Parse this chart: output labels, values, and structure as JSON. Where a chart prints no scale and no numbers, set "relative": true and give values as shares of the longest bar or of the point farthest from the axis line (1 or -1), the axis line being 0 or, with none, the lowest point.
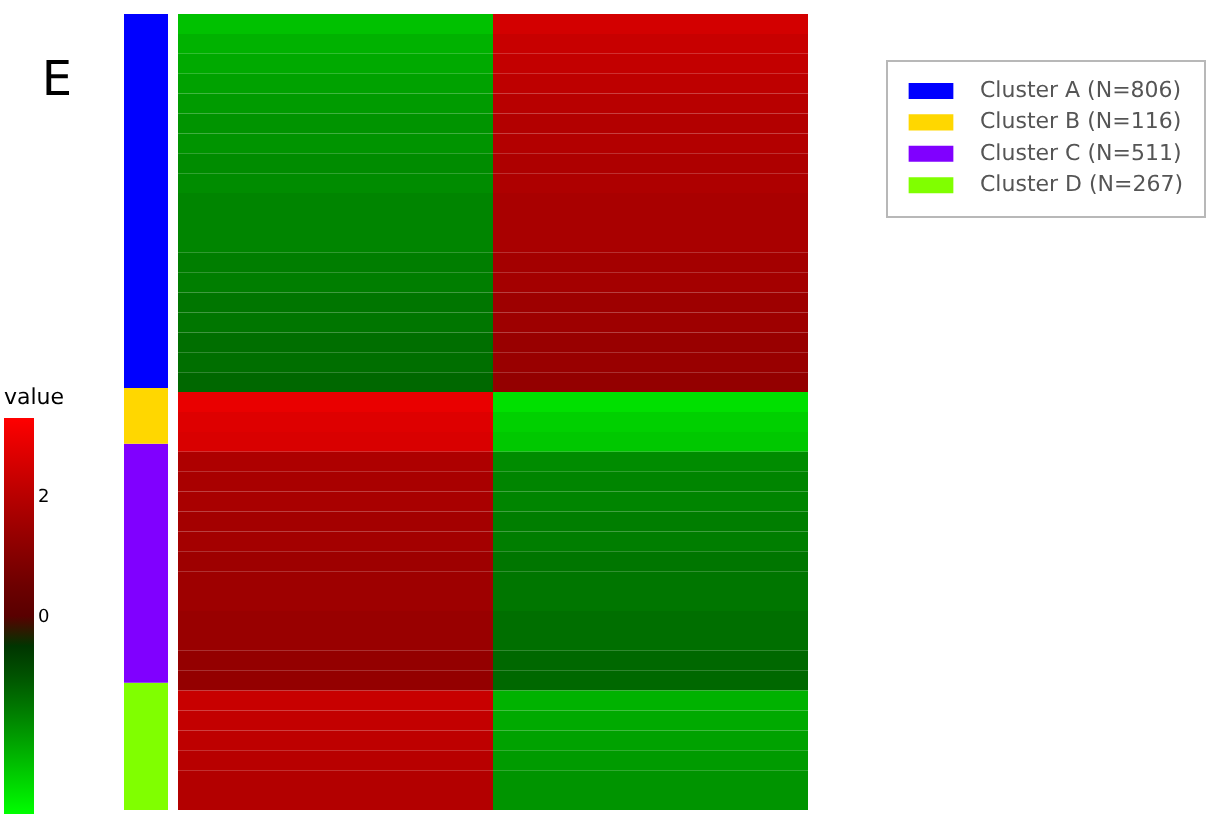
{
  "chart_data": [
    {
      "type": "bar",
      "title": "E",
      "categories": [
        null
      ],
      "stacked": true,
      "relative": true,
      "legend": "top right",
      "series": [
        {
          "name": "Cluster D (N=267)",
          "color": "#80ff00",
          "values": [
            0.16
          ]
        },
        {
          "name": "Cluster C (N=511)",
          "color": "#8000ff",
          "values": [
            0.3
          ]
        },
        {
          "name": "Cluster B (N=116)",
          "color": "#ffd700",
          "values": [
            0.07
          ]
        },
        {
          "name": "Cluster A (N=806)",
          "color": "#0000ff",
          "values": [
            0.47
          ]
        }
      ]
    },
    {
      "type": "heatmap",
      "clabel": "value",
      "categories": [
        null,
        null
      ],
      "y_categories": [
        null,
        null,
        null,
        null,
        null,
        null,
        null,
        null,
        null,
        null,
        null,
        null,
        null,
        null,
        null,
        null,
        null,
        null,
        null,
        null,
        null,
        null,
        null,
        null,
        null,
        null,
        null,
        null,
        null,
        null,
        null,
        null,
        null,
        null,
        null,
        null,
        null,
        null,
        null,
        null
      ],
      "cells": [
        [
          -2.5,
          2.5
        ],
        [
          -2.3,
          2.3
        ],
        [
          -2.2,
          2.2
        ],
        [
          -2.1,
          2.1
        ],
        [
          -2,
          2
        ],
        [
          -1.9,
          1.9
        ],
        [
          -1.9,
          1.9
        ],
        [
          -1.8,
          1.8
        ],
        [
          -1.8,
          1.8
        ],
        [
          -1.7,
          1.7
        ],
        [
          -1.7,
          1.7
        ],
        [
          -1.7,
          1.7
        ],
        [
          -1.6,
          1.6
        ],
        [
          -1.6,
          1.6
        ],
        [
          -1.5,
          1.5
        ],
        [
          -1.5,
          1.5
        ],
        [
          -1.4,
          1.4
        ],
        [
          -1.4,
          1.4
        ],
        [
          -1.3,
          1.3
        ],
        [
          2.9,
          -2.9
        ],
        [
          2.7,
          -2.7
        ],
        [
          2.6,
          -2.6
        ],
        [
          1.8,
          -1.8
        ],
        [
          1.7,
          -1.7
        ],
        [
          1.7,
          -1.7
        ],
        [
          1.6,
          -1.6
        ],
        [
          1.6,
          -1.6
        ],
        [
          1.5,
          -1.5
        ],
        [
          1.5,
          -1.5
        ],
        [
          1.5,
          -1.5
        ],
        [
          1.4,
          -1.4
        ],
        [
          1.4,
          -1.4
        ],
        [
          1.3,
          -1.3
        ],
        [
          1.3,
          -1.3
        ],
        [
          2.3,
          -2.3
        ],
        [
          2.2,
          -2.2
        ],
        [
          2.1,
          -2.1
        ],
        [
          2,
          -2
        ],
        [
          1.9,
          -1.9
        ],
        [
          1.9,
          -1.9
        ]
      ],
      "clim": [
        -3.3,
        3.3
      ],
      "cticks": [
        0,
        2
      ]
    }
  ]
}
